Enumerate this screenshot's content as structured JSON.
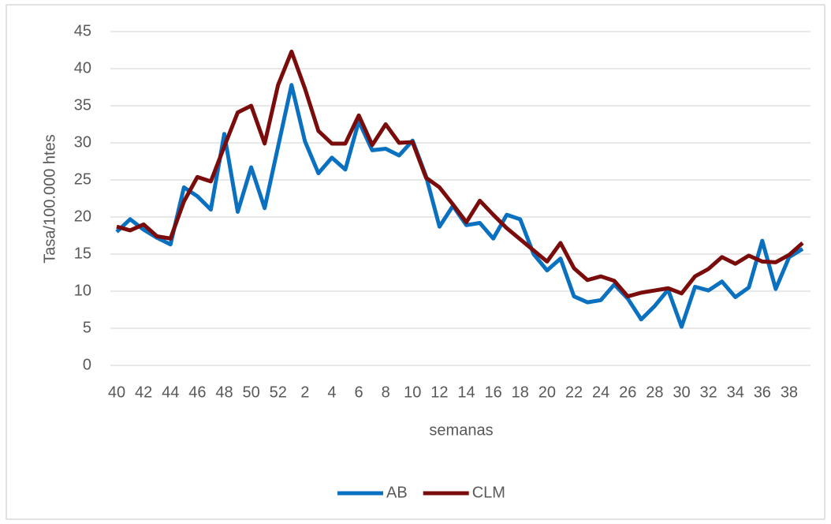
{
  "chart_data": {
    "type": "line",
    "x_label": "semanas",
    "y_label": "Tasa/100.000 htes",
    "categories": [
      "40",
      null,
      "42",
      null,
      "44",
      null,
      "46",
      null,
      "48",
      null,
      "50",
      null,
      "52",
      null,
      "2",
      null,
      "4",
      null,
      "6",
      null,
      "8",
      null,
      "10",
      null,
      "12",
      null,
      "14",
      null,
      "16",
      null,
      "18",
      null,
      "20",
      null,
      "22",
      null,
      "24",
      null,
      "26",
      null,
      "28",
      null,
      "30",
      null,
      "32",
      null,
      "34",
      null,
      "36",
      null,
      "38",
      null
    ],
    "series": [
      {
        "name": "AB",
        "color": "#0a70c0",
        "values": [
          18,
          19.7,
          18.3,
          17.2,
          16.3,
          24,
          22.8,
          21,
          31.2,
          20.7,
          26.7,
          21.2,
          29.5,
          37.8,
          30.2,
          25.9,
          28,
          26.4,
          32.9,
          29,
          29.2,
          28.3,
          30.3,
          25.5,
          18.7,
          21.5,
          18.9,
          19.2,
          17.1,
          20.3,
          19.7,
          15,
          12.8,
          14.4,
          9.3,
          8.5,
          8.8,
          10.9,
          9,
          6.2,
          8,
          10.2,
          5.2,
          10.6,
          10.1,
          11.3,
          9.2,
          10.5,
          16.8,
          10.3,
          14.6,
          15.7
        ]
      },
      {
        "name": "CLM",
        "color": "#7b0c0c",
        "values": [
          18.7,
          18.2,
          19,
          17.4,
          17.1,
          22.1,
          25.4,
          24.8,
          29.5,
          34.1,
          35,
          29.9,
          37.8,
          42.3,
          37.3,
          31.6,
          29.9,
          29.9,
          33.7,
          29.7,
          32.5,
          30,
          30.1,
          25.3,
          24,
          21.7,
          19.3,
          22.2,
          20.3,
          18.5,
          17,
          15.5,
          14,
          16.5,
          13.1,
          11.5,
          12,
          11.4,
          9.3,
          9.8,
          10.1,
          10.4,
          9.7,
          12,
          13,
          14.6,
          13.7,
          14.8,
          14,
          13.9,
          14.9,
          16.5
        ]
      }
    ],
    "ylim": [
      0,
      45
    ],
    "yticks": [
      0,
      5,
      10,
      15,
      20,
      25,
      30,
      35,
      40,
      45
    ],
    "grid": true,
    "legend": "bottom"
  }
}
